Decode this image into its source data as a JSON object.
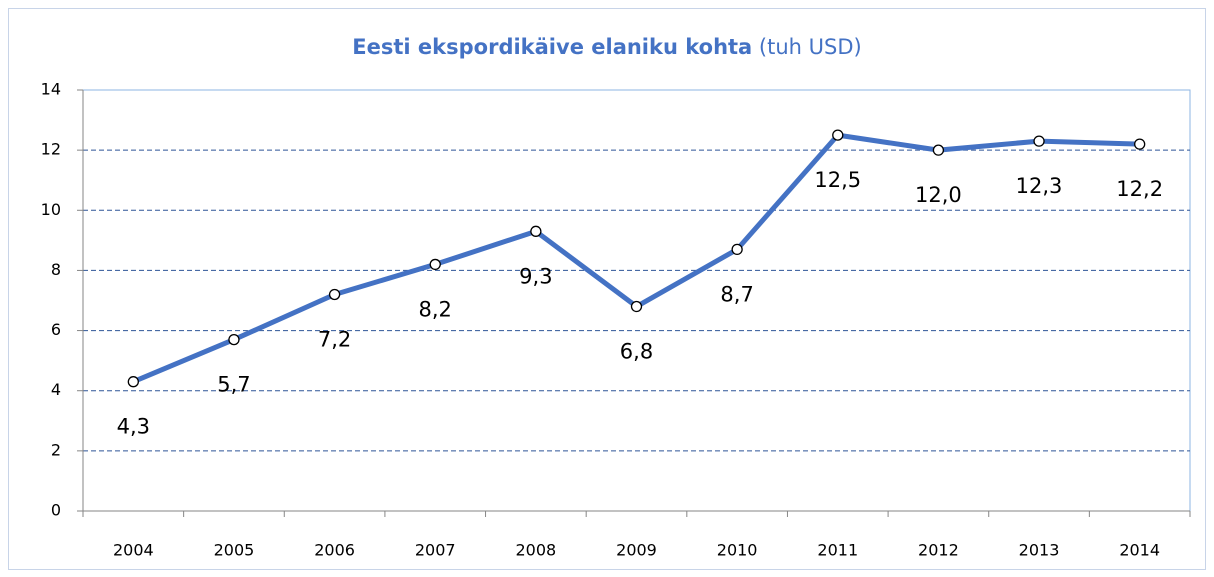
{
  "chart_data": {
    "type": "line",
    "title": "Eesti ekspordikäive elaniku kohta",
    "subtitle": "(tuh USD)",
    "categories": [
      "2004",
      "2005",
      "2006",
      "2007",
      "2008",
      "2009",
      "2010",
      "2011",
      "2012",
      "2013",
      "2014"
    ],
    "values": [
      4.3,
      5.7,
      7.2,
      8.2,
      9.3,
      6.8,
      8.7,
      12.5,
      12.0,
      12.3,
      12.2
    ],
    "value_labels": [
      "4,3",
      "5,7",
      "7,2",
      "8,2",
      "9,3",
      "6,8",
      "8,7",
      "12,5",
      "12,0",
      "12,3",
      "12,2"
    ],
    "color": "#4472c4",
    "ylim": [
      0,
      14
    ],
    "yticks": [
      0,
      2,
      4,
      6,
      8,
      10,
      12,
      14
    ],
    "grid": true
  }
}
